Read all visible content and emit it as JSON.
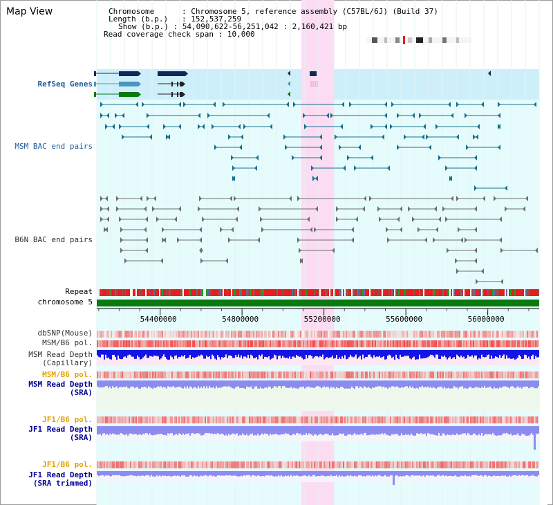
{
  "header": {
    "title": "Map View",
    "chromosome_label": "Chromosome",
    "chromosome_value": "Chromosome 5, reference assembly (C57BL/6J) (Build 37)",
    "length_label": "Length (b.p.)",
    "length_value": "152,537,259",
    "show_label": "Show (b.p.)",
    "show_value": "54,090,622-56,251,042 : 2,160,421 bp",
    "coverage_label": "Read coverage check span",
    "coverage_value": "10,000"
  },
  "tracks": {
    "refseq": "RefSeq Genes",
    "msm_bac": "MSM BAC end pairs",
    "b6n_bac": "B6N BAC end pairs",
    "repeat": "Repeat",
    "chromosome": "chromosome 5",
    "dbsnp": "dbSNP(Mouse)",
    "msm_b6_pol": "MSM/B6 pol.",
    "msm_read_depth_cap_1": "MSM Read Depth",
    "msm_read_depth_cap_2": "(Capillary)",
    "msm_b6_pol_2": "MSM/B6 pol.",
    "msm_read_depth_sra_1": "MSM Read Depth",
    "msm_read_depth_sra_2": "(SRA)",
    "jf1_b6_pol": "JF1/B6 pol.",
    "jf1_read_depth_sra_1": "JF1 Read Depth",
    "jf1_read_depth_sra_2": "(SRA)",
    "jf1_b6_pol_2": "JF1/B6 pol.",
    "jf1_read_depth_trim_1": "JF1 Read Depth",
    "jf1_read_depth_trim_2": "(SRA trimmed)"
  },
  "axis": {
    "start_bp": 54090622,
    "end_bp": 56251042,
    "ticks": [
      "54400000",
      "54800000",
      "55200000",
      "55600000",
      "56000000"
    ],
    "tick_values": [
      54400000,
      54800000,
      55200000,
      55600000,
      56000000
    ]
  },
  "highlight": {
    "start_bp": 55090000,
    "end_bp": 55250000
  },
  "colors": {
    "page_bg": "#ffffff",
    "panel_bg": "#e6fcfc",
    "refseq_bg": "#cdeffa",
    "highlight": "#fbdcf3",
    "gene_navy": "#0f2a5a",
    "gene_steel": "#4a96c0",
    "gene_green": "#087a0e",
    "msm_pair": "#176f8c",
    "b6n_pair": "#6e6e6e",
    "chromosome_bar": "#087a0e",
    "depth_blue": "#1414e6",
    "depth_light": "#8c8cf0",
    "title_blue": "#1e5a9c",
    "orange_label": "#e8a000",
    "navy_label": "#000090"
  }
}
